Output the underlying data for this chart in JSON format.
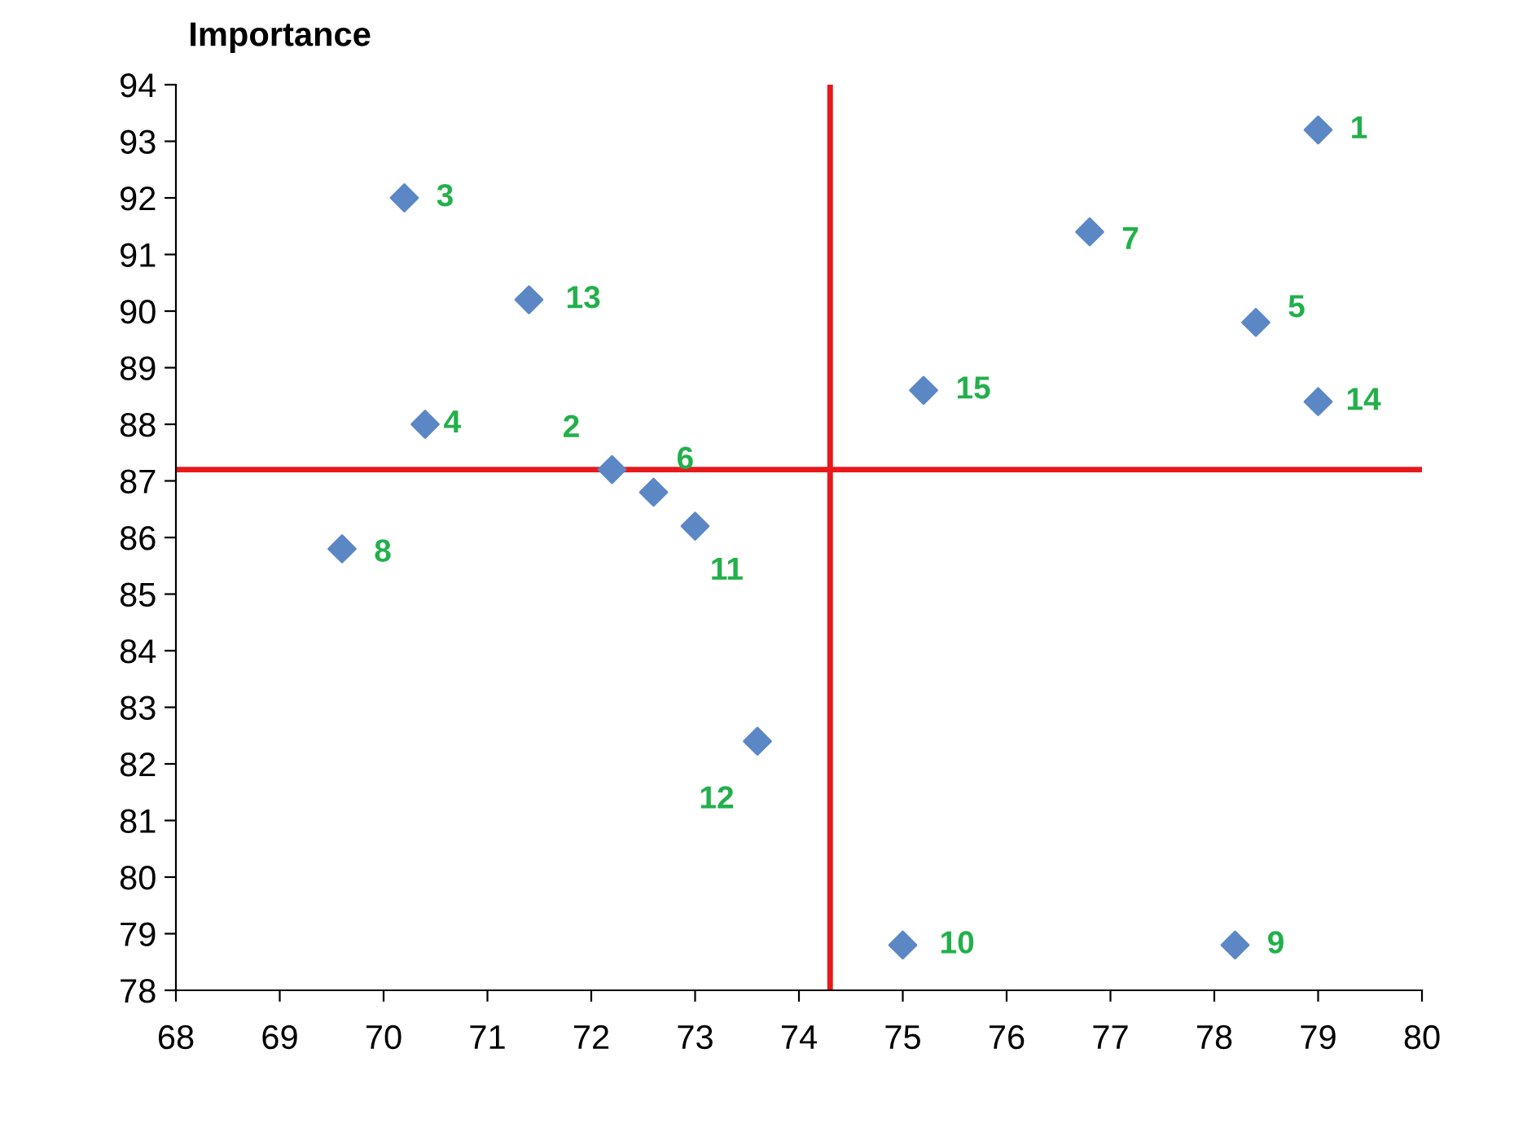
{
  "chart_data": {
    "type": "scatter",
    "ylabel": "Importance",
    "x": [
      79.0,
      72.2,
      70.2,
      70.4,
      78.4,
      72.6,
      76.8,
      69.6,
      78.2,
      75.0,
      73.0,
      73.6,
      71.4,
      79.0,
      75.2
    ],
    "values": [
      93.2,
      87.2,
      92.0,
      88.0,
      89.8,
      86.8,
      91.4,
      85.8,
      78.8,
      78.8,
      86.2,
      82.4,
      90.2,
      88.4,
      88.6
    ],
    "color": "#5b87c5",
    "marker": "diamond",
    "xlim": [
      68,
      80
    ],
    "xticks": [
      68,
      69,
      70,
      71,
      72,
      73,
      74,
      75,
      76,
      77,
      78,
      79,
      80
    ],
    "ylim": [
      78,
      94
    ],
    "yticks": [
      78,
      79,
      80,
      81,
      82,
      83,
      84,
      85,
      86,
      87,
      88,
      89,
      90,
      91,
      92,
      93,
      94
    ],
    "grid": false,
    "legend": false,
    "ref_lines": [
      {
        "axis": "x",
        "value": 74.3,
        "color": "#e8191c"
      },
      {
        "axis": "y",
        "value": 87.2,
        "color": "#e8191c"
      }
    ],
    "annotations": [
      {
        "text": "1",
        "x": 79.0,
        "y": 93.2
      },
      {
        "text": "2",
        "x": 72.2,
        "y": 87.2
      },
      {
        "text": "3",
        "x": 70.2,
        "y": 92.0
      },
      {
        "text": "4",
        "x": 70.4,
        "y": 88.0
      },
      {
        "text": "5",
        "x": 78.4,
        "y": 89.8
      },
      {
        "text": "6",
        "x": 72.6,
        "y": 86.8
      },
      {
        "text": "7",
        "x": 76.8,
        "y": 91.4
      },
      {
        "text": "8",
        "x": 69.6,
        "y": 85.8
      },
      {
        "text": "9",
        "x": 78.2,
        "y": 78.8
      },
      {
        "text": "10",
        "x": 75.0,
        "y": 78.8
      },
      {
        "text": "11",
        "x": 73.0,
        "y": 86.2
      },
      {
        "text": "12",
        "x": 73.6,
        "y": 82.4
      },
      {
        "text": "13",
        "x": 71.4,
        "y": 90.2
      },
      {
        "text": "14",
        "x": 79.0,
        "y": 88.4
      },
      {
        "text": "15",
        "x": 75.2,
        "y": 88.6
      }
    ]
  }
}
